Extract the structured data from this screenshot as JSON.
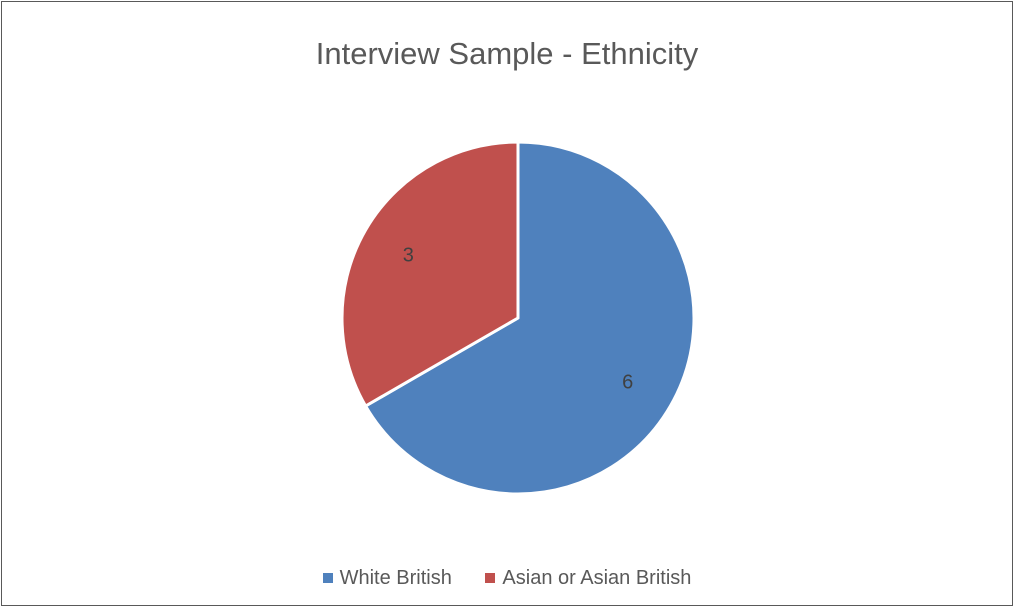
{
  "chart_data": {
    "type": "pie",
    "title": "Interview Sample - Ethnicity",
    "categories": [
      "White British",
      "Asian or Asian British"
    ],
    "values": [
      6,
      3
    ],
    "data_labels": [
      "6",
      "3"
    ],
    "colors": [
      "#4f81bd",
      "#c0504d"
    ],
    "legend_position": "bottom",
    "start_angle_deg": 0,
    "direction": "clockwise"
  }
}
